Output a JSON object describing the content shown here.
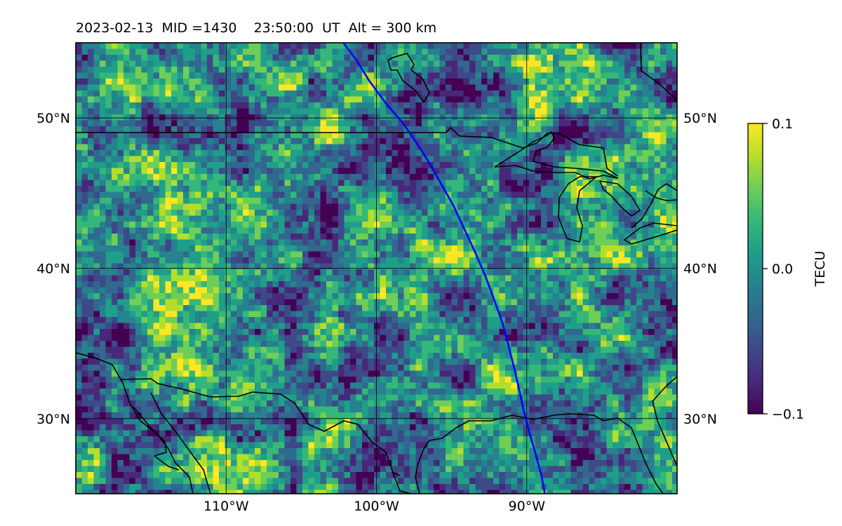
{
  "title": "2023-02-13  MID =1430    23:50:00  UT  Alt = 300 km",
  "map": {
    "lon_range": [
      -120,
      -80
    ],
    "lat_range": [
      25,
      55
    ],
    "lon_ticks": [
      {
        "value": -110,
        "label": "110°W"
      },
      {
        "value": -100,
        "label": "100°W"
      },
      {
        "value": -90,
        "label": "90°W"
      }
    ],
    "lat_ticks": [
      {
        "value": 50,
        "label": "50°N"
      },
      {
        "value": 40,
        "label": "40°N"
      },
      {
        "value": 30,
        "label": "30°N"
      }
    ],
    "track_color": "#0000ff",
    "coast_color": "#000000",
    "track": [
      [
        -102.2,
        55
      ],
      [
        -101.3,
        53.8
      ],
      [
        -100.5,
        52.5
      ],
      [
        -99.4,
        51
      ],
      [
        -98.2,
        49.6
      ],
      [
        -97.3,
        48.3
      ],
      [
        -96.6,
        47.2
      ],
      [
        -95.8,
        45.8
      ],
      [
        -94.9,
        44.2
      ],
      [
        -94.2,
        42.7
      ],
      [
        -93.5,
        41.2
      ],
      [
        -92.8,
        39.6
      ],
      [
        -92.2,
        38
      ],
      [
        -91.6,
        36.3
      ],
      [
        -91.2,
        34.8
      ],
      [
        -90.8,
        33.2
      ],
      [
        -90.5,
        31.9
      ],
      [
        -90.2,
        30.5
      ],
      [
        -89.8,
        29
      ],
      [
        -89.4,
        27.6
      ],
      [
        -89,
        26.1
      ],
      [
        -88.8,
        25
      ]
    ]
  },
  "colorbar": {
    "label": "TECU",
    "min": -0.1,
    "max": 0.1,
    "ticks": [
      {
        "value": 0.1,
        "label": "0.1"
      },
      {
        "value": 0.0,
        "label": "0.0"
      },
      {
        "value": -0.1,
        "label": "−0.1"
      }
    ],
    "colormap": [
      "#440154",
      "#482878",
      "#3e4989",
      "#31688e",
      "#26828e",
      "#1f9e89",
      "#35b779",
      "#6ece58",
      "#b5de2b",
      "#fde725"
    ]
  }
}
